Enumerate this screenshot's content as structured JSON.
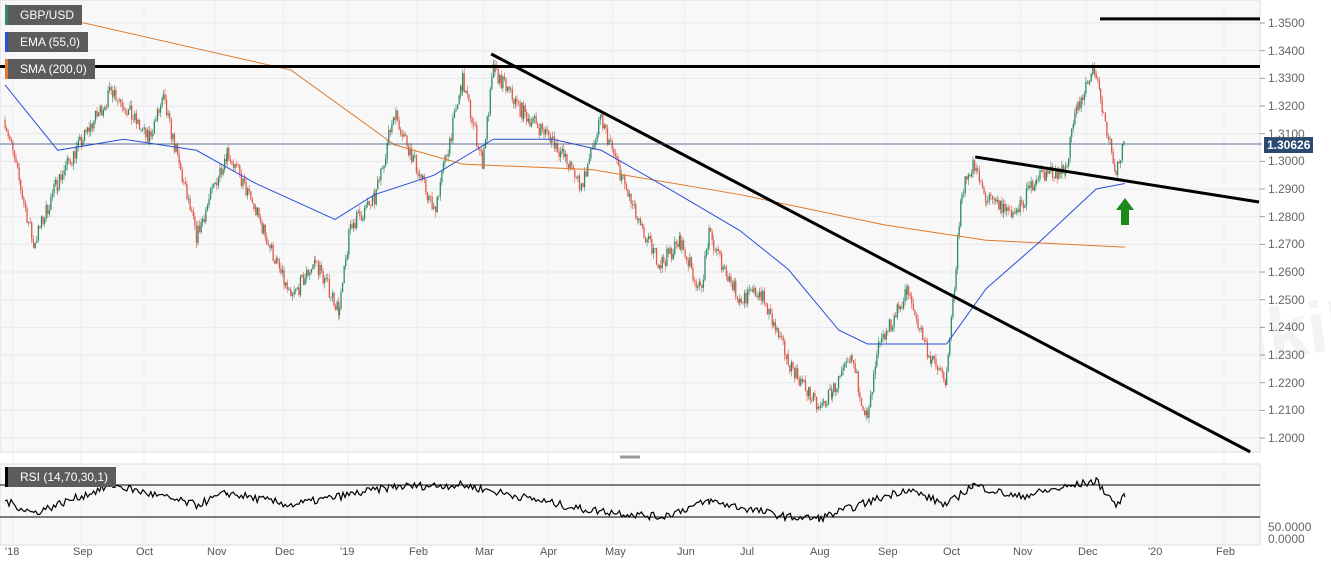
{
  "legend": {
    "symbol": "GBP/USD",
    "ema": "EMA (55,0)",
    "sma": "SMA (200,0)",
    "rsi": "RSI (14,70,30,1)"
  },
  "watermark": "WikiFX",
  "current_price": "1.30626",
  "colors": {
    "up": "#2e8b62",
    "down": "#e0584a",
    "ema": "#2b4fd6",
    "sma": "#e07a2a",
    "price_tag": "#2a4a70",
    "arrow": "#1a8a1a"
  },
  "chart_data": {
    "type": "candlestick",
    "x_ticks": [
      "'18",
      "Sep",
      "Oct",
      "Nov",
      "Dec",
      "'19",
      "Feb",
      "Mar",
      "Apr",
      "May",
      "Jun",
      "Jul",
      "Aug",
      "Sep",
      "Oct",
      "Nov",
      "Dec",
      "'20",
      "Feb"
    ],
    "y_ticks": [
      "1.3500",
      "1.3400",
      "1.3300",
      "1.3200",
      "1.3100",
      "1.3000",
      "1.2900",
      "1.2800",
      "1.2700",
      "1.2600",
      "1.2500",
      "1.2400",
      "1.2300",
      "1.2200",
      "1.2100",
      "1.2000"
    ],
    "ylim": [
      1.195,
      1.358
    ],
    "close_path": [
      [
        "2018-08-01",
        1.315
      ],
      [
        "2018-08-14",
        1.27
      ],
      [
        "2018-08-25",
        1.293
      ],
      [
        "2018-09-19",
        1.326
      ],
      [
        "2018-10-05",
        1.308
      ],
      [
        "2018-10-12",
        1.322
      ],
      [
        "2018-10-27",
        1.273
      ],
      [
        "2018-11-10",
        1.304
      ],
      [
        "2018-11-23",
        1.282
      ],
      [
        "2018-12-09",
        1.25
      ],
      [
        "2018-12-20",
        1.264
      ],
      [
        "2018-12-31",
        1.246
      ],
      [
        "2019-01-05",
        1.277
      ],
      [
        "2019-01-16",
        1.286
      ],
      [
        "2019-01-25",
        1.318
      ],
      [
        "2019-02-12",
        1.282
      ],
      [
        "2019-02-25",
        1.329
      ],
      [
        "2019-03-06",
        1.3
      ],
      [
        "2019-03-11",
        1.333
      ],
      [
        "2019-03-24",
        1.318
      ],
      [
        "2019-04-07",
        1.308
      ],
      [
        "2019-04-20",
        1.291
      ],
      [
        "2019-04-29",
        1.315
      ],
      [
        "2019-05-17",
        1.275
      ],
      [
        "2019-05-26",
        1.263
      ],
      [
        "2019-06-04",
        1.271
      ],
      [
        "2019-06-13",
        1.253
      ],
      [
        "2019-06-17",
        1.273
      ],
      [
        "2019-07-01",
        1.25
      ],
      [
        "2019-07-10",
        1.253
      ],
      [
        "2019-07-23",
        1.228
      ],
      [
        "2019-08-06",
        1.21
      ],
      [
        "2019-08-12",
        1.217
      ],
      [
        "2019-08-21",
        1.228
      ],
      [
        "2019-08-28",
        1.206
      ],
      [
        "2019-09-02",
        1.232
      ],
      [
        "2019-09-15",
        1.253
      ],
      [
        "2019-09-26",
        1.228
      ],
      [
        "2019-10-03",
        1.221
      ],
      [
        "2019-10-10",
        1.29
      ],
      [
        "2019-10-15",
        1.299
      ],
      [
        "2019-10-21",
        1.286
      ],
      [
        "2019-11-04",
        1.281
      ],
      [
        "2019-11-13",
        1.295
      ],
      [
        "2019-11-26",
        1.297
      ],
      [
        "2019-12-01",
        1.318
      ],
      [
        "2019-12-07",
        1.331
      ],
      [
        "2019-12-10",
        1.333
      ],
      [
        "2019-12-12",
        1.322
      ],
      [
        "2019-12-19",
        1.297
      ],
      [
        "2019-12-23",
        1.306
      ]
    ],
    "ema_55": [
      [
        "2018-08-01",
        1.3276
      ],
      [
        "2018-08-25",
        1.304
      ],
      [
        "2018-09-24",
        1.308
      ],
      [
        "2018-10-27",
        1.304
      ],
      [
        "2018-11-23",
        1.292
      ],
      [
        "2018-12-29",
        1.279
      ],
      [
        "2019-01-16",
        1.288
      ],
      [
        "2019-02-12",
        1.295
      ],
      [
        "2019-03-11",
        1.308
      ],
      [
        "2019-04-07",
        1.308
      ],
      [
        "2019-04-29",
        1.304
      ],
      [
        "2019-05-30",
        1.29
      ],
      [
        "2019-07-01",
        1.275
      ],
      [
        "2019-07-23",
        1.261
      ],
      [
        "2019-08-15",
        1.239
      ],
      [
        "2019-08-28",
        1.234
      ],
      [
        "2019-10-03",
        1.234
      ],
      [
        "2019-10-21",
        1.254
      ],
      [
        "2019-11-13",
        1.27
      ],
      [
        "2019-12-10",
        1.29
      ],
      [
        "2019-12-23",
        1.292
      ]
    ],
    "sma_200": [
      [
        "2018-08-01",
        1.3565
      ],
      [
        "2018-12-09",
        1.333
      ],
      [
        "2019-01-25",
        1.306
      ],
      [
        "2019-02-25",
        1.299
      ],
      [
        "2019-04-25",
        1.297
      ],
      [
        "2019-07-01",
        1.288
      ],
      [
        "2019-09-05",
        1.277
      ],
      [
        "2019-10-21",
        1.2715
      ],
      [
        "2019-12-23",
        1.269
      ]
    ],
    "annotations": {
      "resistance_1": 1.3343,
      "resistance_2": 1.3515,
      "downtrend": [
        [
          "2019-03-10",
          1.3388
        ],
        [
          "2020-02-18",
          1.195
        ]
      ],
      "trendline": [
        [
          "2019-10-16",
          1.3016
        ],
        [
          "2020-02-22",
          1.2853
        ]
      ],
      "arrow": "up"
    },
    "rsi": {
      "levels": [
        70,
        30
      ],
      "y_ticks": [
        "50.0000",
        "0.0000"
      ],
      "values": [
        [
          "2018-08-01",
          50
        ],
        [
          "2018-08-14",
          35
        ],
        [
          "2018-09-19",
          70
        ],
        [
          "2018-10-27",
          45
        ],
        [
          "2018-11-10",
          60
        ],
        [
          "2018-12-09",
          45
        ],
        [
          "2019-01-25",
          68
        ],
        [
          "2019-02-25",
          70
        ],
        [
          "2019-03-24",
          55
        ],
        [
          "2019-04-20",
          40
        ],
        [
          "2019-05-26",
          30
        ],
        [
          "2019-06-17",
          50
        ],
        [
          "2019-07-23",
          30
        ],
        [
          "2019-08-06",
          28
        ],
        [
          "2019-09-15",
          65
        ],
        [
          "2019-10-03",
          45
        ],
        [
          "2019-10-15",
          70
        ],
        [
          "2019-11-04",
          55
        ],
        [
          "2019-12-10",
          75
        ],
        [
          "2019-12-19",
          45
        ],
        [
          "2019-12-23",
          55
        ]
      ]
    }
  }
}
